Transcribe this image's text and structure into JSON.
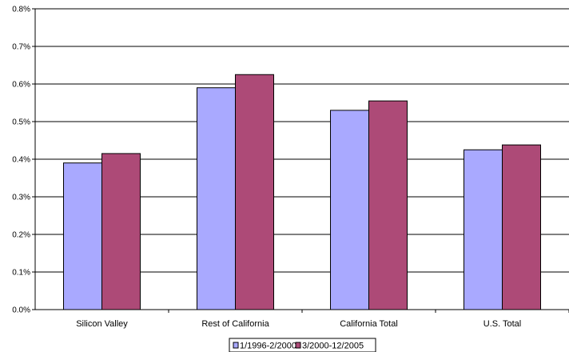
{
  "chart_data": {
    "type": "bar",
    "title": "",
    "xlabel": "",
    "ylabel": "",
    "categories": [
      "Silicon Valley",
      "Rest of California",
      "California Total",
      "U.S. Total"
    ],
    "series": [
      {
        "name": "1/1996-2/2000",
        "values": [
          0.39,
          0.59,
          0.53,
          0.425
        ],
        "color": "#a9a9ff"
      },
      {
        "name": "3/2000-12/2005",
        "values": [
          0.415,
          0.625,
          0.555,
          0.438
        ],
        "color": "#ad4a77"
      }
    ],
    "ylim": [
      0,
      0.8
    ],
    "y_ticks": [
      0,
      0.1,
      0.2,
      0.3,
      0.4,
      0.5,
      0.6,
      0.7,
      0.8
    ],
    "y_tick_labels": [
      "0.0%",
      "0.1%",
      "0.2%",
      "0.3%",
      "0.4%",
      "0.5%",
      "0.6%",
      "0.7%",
      "0.8%"
    ],
    "grid": true,
    "legend_position": "bottom-center"
  }
}
